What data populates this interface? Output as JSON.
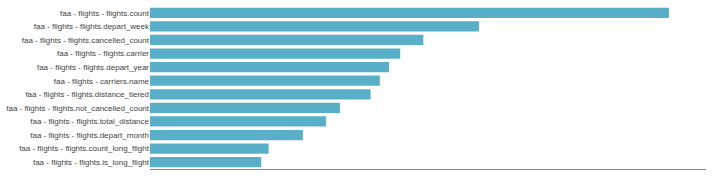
{
  "chart_data": {
    "type": "bar",
    "orientation": "horizontal",
    "categories": [
      "faa - flights - flights.count",
      "faa - flights - flights.depart_week",
      "faa - flights - flights.cancelled_count",
      "faa - flights - flights.carrier",
      "faa - flights - flights.depart_year",
      "faa - flights - carriers.name",
      "faa - flights - flights.distance_tiered",
      "faa - flights - flights.not_cancelled_count",
      "faa - flights - flights.total_distance",
      "faa - flights - flights.depart_month",
      "faa - flights - flights.count_long_flight",
      "faa - flights - flights.is_long_flight"
    ],
    "values": [
      560,
      355,
      295,
      270,
      258,
      248,
      238,
      205,
      190,
      165,
      128,
      120
    ],
    "color": "#5aafc8",
    "xlim": [
      0,
      600
    ],
    "xticks": [],
    "grid": false,
    "tick_labels": "y"
  }
}
